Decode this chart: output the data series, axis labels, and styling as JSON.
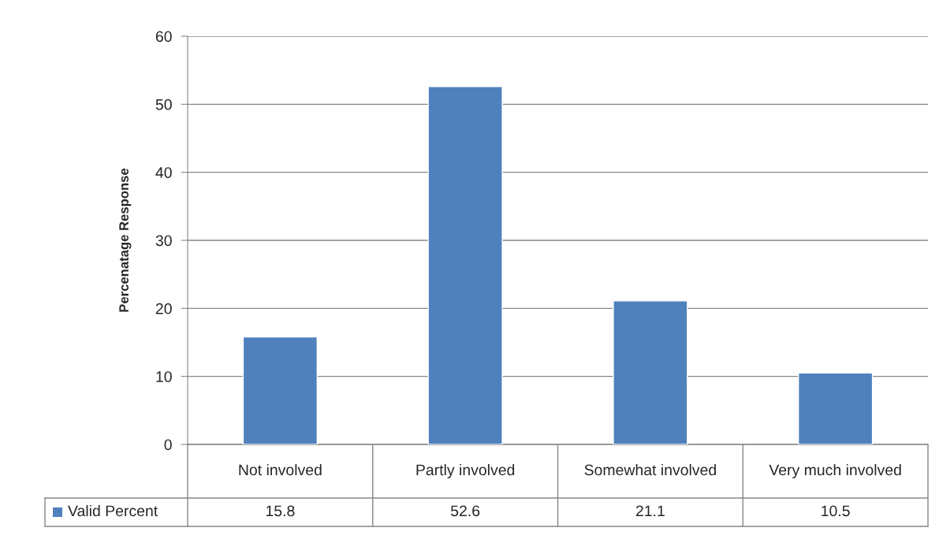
{
  "chart_data": {
    "type": "bar",
    "ylabel": "Percenatage Response",
    "categories": [
      "Not involved",
      "Partly involved",
      "Somewhat involved",
      "Very much involved"
    ],
    "series": [
      {
        "name": "Valid Percent",
        "color": "#4f81bd",
        "values": [
          15.8,
          52.6,
          21.1,
          10.5
        ]
      }
    ],
    "ylim": [
      0,
      60
    ],
    "yticks": [
      0,
      10,
      20,
      30,
      40,
      50,
      60
    ],
    "grid": "y",
    "legend": "bottom",
    "data_labels": true
  }
}
